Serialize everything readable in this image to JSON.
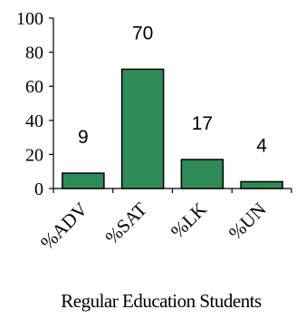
{
  "chart_data": {
    "type": "bar",
    "categories": [
      "%ADV",
      "%SAT",
      "%LK",
      "%UN"
    ],
    "values": [
      9,
      70,
      17,
      4
    ],
    "data_labels": [
      "9",
      "70",
      "17",
      "4"
    ],
    "xlabel": "Regular Education Students",
    "ylabel": "",
    "title": "",
    "ylim": [
      0,
      100
    ],
    "yticks": [
      0,
      20,
      40,
      60,
      80,
      100
    ],
    "bar_color": "#2e8b57",
    "grid": false,
    "legend": "none"
  }
}
